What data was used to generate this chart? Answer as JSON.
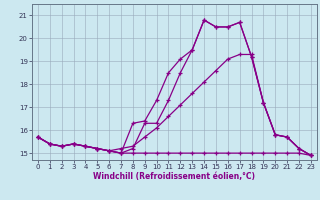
{
  "xlabel": "Windchill (Refroidissement éolien,°C)",
  "xlim": [
    -0.5,
    23.5
  ],
  "ylim": [
    14.7,
    21.5
  ],
  "yticks": [
    15,
    16,
    17,
    18,
    19,
    20,
    21
  ],
  "xticks": [
    0,
    1,
    2,
    3,
    4,
    5,
    6,
    7,
    8,
    9,
    10,
    11,
    12,
    13,
    14,
    15,
    16,
    17,
    18,
    19,
    20,
    21,
    22,
    23
  ],
  "bg_color": "#cce8f0",
  "line_color": "#880088",
  "grid_color": "#99aabb",
  "line1_x": [
    0,
    1,
    2,
    3,
    4,
    5,
    6,
    7,
    8,
    9,
    10,
    11,
    12,
    13,
    14,
    15,
    16,
    17,
    18,
    19,
    20,
    21,
    22,
    23
  ],
  "line1_y": [
    15.7,
    15.4,
    15.3,
    15.4,
    15.3,
    15.2,
    15.1,
    15.0,
    16.3,
    16.4,
    17.3,
    18.5,
    19.1,
    19.5,
    20.8,
    20.5,
    20.5,
    20.7,
    19.2,
    17.2,
    15.8,
    15.7,
    15.2,
    14.9
  ],
  "line2_x": [
    0,
    1,
    2,
    3,
    4,
    5,
    6,
    7,
    8,
    9,
    10,
    11,
    12,
    13,
    14,
    15,
    16,
    17,
    18,
    19,
    20,
    21,
    22,
    23
  ],
  "line2_y": [
    15.7,
    15.4,
    15.3,
    15.4,
    15.3,
    15.2,
    15.1,
    15.0,
    15.0,
    15.0,
    15.0,
    15.0,
    15.0,
    15.0,
    15.0,
    15.0,
    15.0,
    15.0,
    15.0,
    15.0,
    15.0,
    15.0,
    15.0,
    14.9
  ],
  "line3_x": [
    0,
    1,
    2,
    3,
    4,
    5,
    6,
    7,
    8,
    9,
    10,
    11,
    12,
    13,
    14,
    15,
    16,
    17,
    18,
    19,
    20,
    21,
    22,
    23
  ],
  "line3_y": [
    15.7,
    15.4,
    15.3,
    15.4,
    15.3,
    15.2,
    15.1,
    15.2,
    15.3,
    15.7,
    16.1,
    16.6,
    17.1,
    17.6,
    18.1,
    18.6,
    19.1,
    19.3,
    19.3,
    17.2,
    15.8,
    15.7,
    15.2,
    14.9
  ],
  "line4_x": [
    0,
    1,
    2,
    3,
    4,
    5,
    6,
    7,
    8,
    9,
    10,
    11,
    12,
    13,
    14,
    15,
    16,
    17,
    18,
    19,
    20,
    21,
    22,
    23
  ],
  "line4_y": [
    15.7,
    15.4,
    15.3,
    15.4,
    15.3,
    15.2,
    15.1,
    15.0,
    15.2,
    16.3,
    16.3,
    17.3,
    18.5,
    19.5,
    20.8,
    20.5,
    20.5,
    20.7,
    19.2,
    17.2,
    15.8,
    15.7,
    15.2,
    14.9
  ]
}
